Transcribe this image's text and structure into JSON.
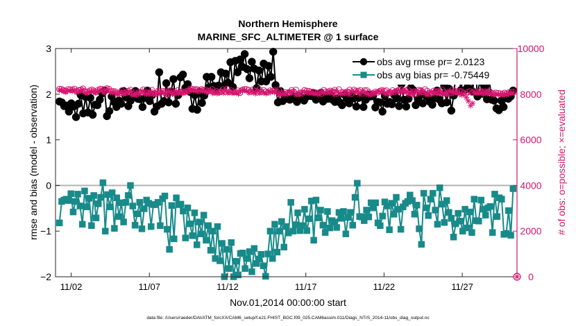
{
  "chart_data": {
    "type": "line",
    "title": "Northern Hemisphere",
    "subtitle": "MARINE_SFC_ALTIMETER @ 1 surface",
    "xlabel": "Nov.01,2014 00:00:00 start",
    "ylabel_left": "rmse and bias (model - observation)",
    "ylabel_right": "# of obs: o=possible; ×=evaluated",
    "footer": "data file: /Users/raeder/DAI/ATM_forcXX/CAM6_setup/f.e21.FHIST_BGC.f09_025.CAM6assim.011/Diags_NTrS_2014-11/obs_diag_output.nc",
    "xlim": [
      0.5,
      30.0
    ],
    "ylim_left": [
      -2,
      3
    ],
    "ylim_right": [
      0,
      10000
    ],
    "x_ticks": [
      1.5,
      6.5,
      11.5,
      16.5,
      21.5,
      26.5
    ],
    "x_tick_labels": [
      "11/02",
      "11/07",
      "11/12",
      "11/17",
      "11/22",
      "11/27"
    ],
    "y_left_ticks": [
      -2,
      -1,
      0,
      1,
      2,
      3
    ],
    "y_left_tick_labels": [
      "−2",
      "−1",
      "0",
      "1",
      "2",
      "3"
    ],
    "y_right_ticks": [
      0,
      2000,
      4000,
      6000,
      8000,
      10000
    ],
    "y_right_tick_labels": [
      "0",
      "2000",
      "4000",
      "6000",
      "8000",
      "10000"
    ],
    "zero_line": 0,
    "legend_position": "top-right",
    "series": [
      {
        "name": "obs avg rmse pr= 2.0123",
        "axis": "left",
        "color": "#000000",
        "marker": "circle",
        "values": [
          1.84,
          1.82,
          1.74,
          1.75,
          1.62,
          1.8,
          1.73,
          1.5,
          1.79,
          1.98,
          1.58,
          1.94,
          1.6,
          1.92,
          1.55,
          1.77,
          1.76,
          1.88,
          2.02,
          2.08,
          1.52,
          1.63,
          1.95,
          1.83,
          1.72,
          1.86,
          1.79,
          2.07,
          1.93,
          1.74,
          1.86,
          1.96,
          2.07,
          1.9,
          1.89,
          1.72,
          1.92,
          2.08,
          1.85,
          1.98,
          1.62,
          1.73,
          2.48,
          1.79,
          1.85,
          2.24,
          1.82,
          2.06,
          2.33,
          1.79,
          1.98,
          2.37,
          2.43,
          2.14,
          2.22,
          2.05,
          1.68,
          1.98,
          1.66,
          2.05,
          1.81,
          1.97,
          2.38,
          2.15,
          2.38,
          2.18,
          2.13,
          2.19,
          2.48,
          2.17,
          2.45,
          2.25,
          2.7,
          2.16,
          2.73,
          2.48,
          2.76,
          2.6,
          2.88,
          2.55,
          2.35,
          2.71,
          2.56,
          2.13,
          2.52,
          2.28,
          2.67,
          2.28,
          2.62,
          2.38,
          2.93,
          2.2,
          1.82,
          2.07,
          1.85,
          1.95,
          1.9,
          1.88,
          1.9,
          1.94,
          1.83,
          1.96,
          1.91,
          1.86,
          1.94,
          1.99,
          1.96,
          2.02,
          1.88,
          1.92,
          2.03,
          1.84,
          1.95,
          1.9,
          2.0,
          1.88,
          1.83,
          1.91,
          1.82,
          1.76,
          1.99,
          1.9,
          1.8,
          1.96,
          1.91,
          1.73,
          1.92,
          1.94,
          1.72,
          1.88,
          1.99,
          1.95,
          1.96,
          1.71,
          1.83,
          1.82,
          1.62,
          1.96,
          1.79,
          1.83,
          1.78,
          1.98,
          1.91,
          1.74,
          2.22,
          1.88,
          1.73,
          1.9,
          2.14,
          2.09,
          1.76,
          1.88,
          1.98,
          1.8,
          1.98,
          1.94,
          1.83,
          1.77,
          1.91,
          2.08,
          1.88,
          1.8,
          2.18,
          1.82,
          2.12,
          1.64,
          1.97,
          2.49,
          2.51,
          2.09,
          2.38,
          2.1,
          2.14,
          2.58,
          2.06,
          2.75,
          1.95,
          2.3,
          2.01,
          2.18,
          1.89,
          2.3,
          1.88,
          1.86,
          1.69,
          1.65,
          1.86,
          1.72,
          1.93,
          1.9,
          1.95,
          2.08
        ]
      },
      {
        "name": "obs avg bias pr= -0.75449",
        "axis": "left",
        "color": "#188a8a",
        "marker": "square",
        "values": [
          -0.82,
          -0.35,
          -0.32,
          -0.3,
          -0.33,
          -0.18,
          -0.58,
          -0.35,
          -0.19,
          -0.45,
          -0.85,
          -0.12,
          -0.47,
          -0.28,
          -0.88,
          -0.22,
          -0.71,
          -0.4,
          -0.26,
          0.06,
          -1.0,
          -0.2,
          -0.47,
          -0.16,
          -0.94,
          -0.27,
          -0.68,
          -0.38,
          -0.8,
          -0.37,
          -0.22,
          0.0,
          -0.45,
          -0.87,
          -0.62,
          -0.37,
          -0.95,
          -0.51,
          -0.32,
          -0.39,
          -0.9,
          -0.42,
          -0.42,
          -0.37,
          -0.88,
          -0.29,
          -0.23,
          -0.96,
          -1.4,
          -0.44,
          -1.17,
          -0.27,
          -0.42,
          -0.41,
          -0.56,
          -1.15,
          -0.49,
          -0.84,
          -1.1,
          -0.6,
          -1.3,
          -0.8,
          -1.06,
          -0.65,
          -1.2,
          -0.88,
          -1.42,
          -1.0,
          -1.6,
          -0.9,
          -1.65,
          -1.27,
          -2.0,
          -1.4,
          -1.82,
          -1.25,
          -2.0,
          -1.66,
          -1.96,
          -1.49,
          -1.48,
          -1.82,
          -1.6,
          -1.45,
          -1.89,
          -1.38,
          -1.71,
          -1.61,
          -1.51,
          -1.76,
          -1.99,
          -1.5,
          -1.0,
          -1.6,
          -0.85,
          -1.46,
          -1.0,
          -0.79,
          -1.35,
          -0.9,
          -1.04,
          -0.37,
          -1.0,
          -0.86,
          -0.6,
          -0.99,
          -0.88,
          -0.52,
          -0.99,
          -0.73,
          -0.34,
          -1.2,
          -0.32,
          -0.71,
          -0.54,
          -0.87,
          -1.03,
          -0.57,
          -0.93,
          -0.77,
          -0.8,
          -0.92,
          -0.59,
          -0.72,
          -0.57,
          -1.06,
          -0.7,
          -0.59,
          -0.87,
          -0.26,
          0.05,
          -0.68,
          -0.69,
          -0.77,
          -0.54,
          -0.69,
          -0.38,
          -0.49,
          -0.38,
          -0.82,
          -0.88,
          -0.67,
          -0.36,
          -0.45,
          -0.97,
          -0.39,
          -0.63,
          -0.26,
          -0.52,
          -0.96,
          -0.47,
          -0.39,
          -0.35,
          -0.21,
          -0.33,
          -0.63,
          -0.43,
          -0.95,
          -1.29,
          -0.17,
          -0.49,
          -0.66,
          -0.3,
          -0.17,
          -0.54,
          -0.85,
          -0.05,
          -0.41,
          -0.81,
          -0.33,
          -0.59,
          -0.72,
          -1.13,
          -0.84,
          -0.61,
          -0.78,
          -1.0,
          -0.52,
          -0.93,
          -0.58,
          -1.03,
          -0.3,
          -0.77,
          -0.78,
          -0.32,
          -0.52,
          -0.65,
          -0.49,
          -0.46,
          -1.03,
          -0.19,
          -0.68,
          -0.27,
          -0.3,
          -1.07,
          -1.05,
          -0.55,
          -1.09,
          -0.07
        ]
      },
      {
        "name": "possible",
        "axis": "right",
        "color": "#d6146e",
        "marker": "circle-open",
        "values": [
          8229,
          8221,
          8172,
          8140,
          8211,
          8205,
          8185,
          8235,
          8124,
          8171,
          8200,
          8246,
          8121,
          8091,
          8153,
          8196,
          8153,
          8102,
          8183,
          8235,
          8216,
          8117,
          8252,
          8233,
          8124,
          8128,
          8116,
          8052,
          8048,
          8166,
          8051,
          8077,
          8141,
          8186,
          8021,
          8058,
          7996,
          8102,
          8071,
          8199,
          8067,
          8063,
          8049,
          8180,
          8039,
          8020,
          8147,
          8076,
          8132,
          8110,
          8010,
          8154,
          8162,
          8053,
          8046,
          8167,
          8091,
          8115,
          8087,
          8126,
          8148,
          8245,
          8218,
          8208,
          8213,
          8164,
          8215,
          8190,
          8196,
          8124,
          8149,
          8212,
          8087,
          8127,
          8078,
          8111,
          8204,
          8102,
          8233,
          8098,
          8159,
          8095,
          8098,
          8156,
          8060,
          8188,
          8218,
          8216,
          8185,
          8103,
          8202,
          8132,
          8078,
          8218,
          8098,
          8173,
          8107,
          8079,
          8158,
          8141,
          8176,
          8126,
          8185,
          8030,
          8035,
          8082,
          8040,
          8077,
          8175,
          8101,
          8188,
          8014,
          8050,
          8040,
          8177,
          8142,
          8140,
          8102,
          8106,
          8081,
          8052,
          8075,
          8027,
          8178,
          8111,
          8113,
          8148,
          8110,
          8184,
          8025,
          8206,
          8075,
          8089,
          8061,
          8098,
          8191,
          8028,
          8188,
          8144,
          8146,
          8172,
          8033,
          8170,
          8164,
          8076,
          8017,
          8029,
          8106,
          8075,
          8137,
          8176,
          8143,
          8162,
          8040,
          8070,
          8164,
          8093,
          8148,
          8189,
          8218,
          8130,
          8153,
          8203,
          8125,
          8033,
          8120,
          8026,
          8179,
          8163,
          8096,
          8212,
          8140,
          8035,
          8023,
          8144,
          8110,
          8126,
          8080,
          8195,
          8095,
          8048,
          8043,
          8041,
          8199,
          8146,
          8090,
          8139,
          8118,
          8044,
          8017,
          8092,
          8124,
          8069,
          8125,
          8085,
          8100,
          8139,
          8059,
          8117,
          8075,
          8129,
          8056,
          8024,
          8060,
          8039,
          8032,
          8010,
          8057,
          8023,
          8077,
          8091,
          8105
        ]
      },
      {
        "name": "evaluated",
        "axis": "right",
        "color": "#d6146e",
        "marker": "asterisk",
        "values": [
          8179,
          8171,
          8122,
          8090,
          8161,
          8155,
          8135,
          8185,
          8074,
          8121,
          8150,
          8196,
          8071,
          8041,
          8103,
          8146,
          8103,
          8052,
          8133,
          8185,
          8166,
          8067,
          8202,
          8183,
          8074,
          8078,
          8066,
          8002,
          7998,
          8116,
          8001,
          8027,
          8091,
          8136,
          7971,
          8008,
          7946,
          8052,
          8021,
          8149,
          8017,
          8013,
          7999,
          8130,
          7989,
          7970,
          8097,
          8026,
          8082,
          8060,
          7960,
          8104,
          8112,
          8003,
          7996,
          8117,
          8041,
          8065,
          8037,
          8076,
          8098,
          8195,
          8168,
          8158,
          8163,
          8114,
          8165,
          8140,
          8146,
          8074,
          8099,
          8162,
          8037,
          8077,
          8028,
          8061,
          8154,
          8052,
          8183,
          8048,
          8109,
          8045,
          8048,
          8106,
          8010,
          8138,
          8168,
          8166,
          8135,
          8053,
          8152,
          8082,
          8028,
          8168,
          8048,
          8123,
          8057,
          8029,
          8108,
          8091,
          8126,
          8076,
          8135,
          7980,
          7985,
          8032,
          7990,
          8027,
          8125,
          8051,
          8138,
          7964,
          8000,
          7990,
          8127,
          8092,
          8090,
          8052,
          8056,
          8031,
          8002,
          8025,
          7977,
          8128,
          8061,
          8063,
          8098,
          8060,
          8134,
          7975,
          8156,
          8025,
          8039,
          8011,
          8048,
          8141,
          7978,
          8138,
          8094,
          8096,
          8122,
          7983,
          8120,
          8114,
          8026,
          7967,
          7979,
          8056,
          8025,
          8087,
          8126,
          8093,
          8112,
          7990,
          8020,
          8114,
          8043,
          8098,
          8139,
          8168,
          8080,
          8103,
          8153,
          8075,
          7983,
          8070,
          7976,
          8129,
          8113,
          8046,
          8162,
          8090,
          7985,
          7973,
          8094,
          8060,
          8076,
          8030,
          8145,
          8045,
          7998,
          7993,
          7991,
          8149,
          8096,
          8040,
          8089,
          8068,
          7994,
          7967,
          8042,
          7850,
          7700,
          7500,
          7600,
          8075,
          8035,
          8050,
          8089,
          8009,
          8067,
          8025,
          8079,
          8006,
          7974,
          8010,
          7989,
          7982,
          7960,
          8007,
          7973,
          8027,
          8041,
          8055
        ]
      }
    ],
    "extra_marks": [
      {
        "name": "obs count marker at end",
        "x": 30.0,
        "y": 0,
        "axis": "right",
        "marker": "circle-asterisk"
      }
    ]
  }
}
